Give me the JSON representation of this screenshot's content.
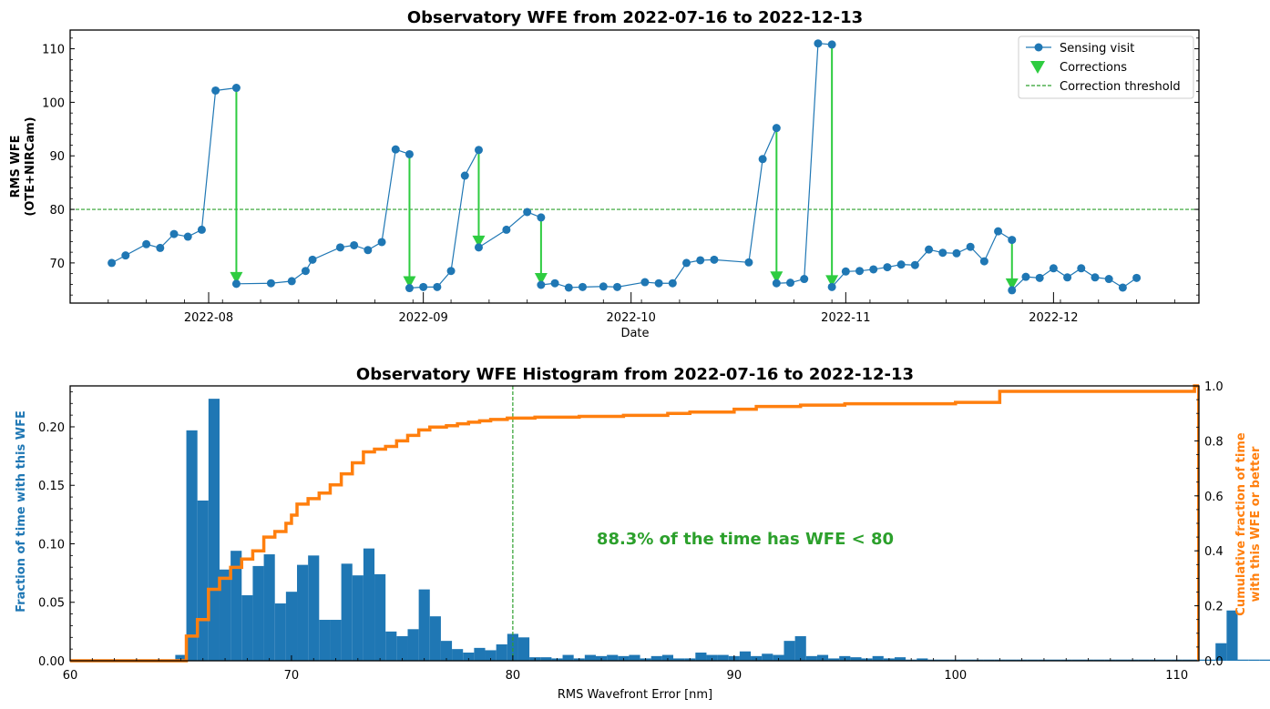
{
  "chart_data": [
    {
      "type": "line",
      "title": "Observatory WFE from 2022-07-16 to 2022-12-13",
      "xlabel": "Date",
      "ylabel_line1": "RMS WFE",
      "ylabel_line2": "(OTE+NIRCam)",
      "x_ticks": [
        "2022-08",
        "2022-09",
        "2022-10",
        "2022-11",
        "2022-12"
      ],
      "y_ticks": [
        70,
        80,
        90,
        100,
        110
      ],
      "xlim": [
        "2022-07-12",
        "2022-12-22"
      ],
      "ylim": [
        62.5,
        113.5
      ],
      "grid": false,
      "legend_position": "top-right",
      "colors": {
        "sensing": "#1f77b4",
        "corrections": "#2ecc40",
        "threshold": "#2ca02c"
      },
      "series": [
        {
          "name": "Sensing visit",
          "points": [
            [
              "2022-07-18",
              70.0
            ],
            [
              "2022-07-20",
              71.4
            ],
            [
              "2022-07-23",
              73.5
            ],
            [
              "2022-07-25",
              72.8
            ],
            [
              "2022-07-27",
              75.4
            ],
            [
              "2022-07-29",
              74.9
            ],
            [
              "2022-07-31",
              76.2
            ],
            [
              "2022-08-02",
              102.2
            ],
            [
              "2022-08-05",
              102.7
            ],
            [
              "2022-08-05",
              66.1
            ],
            [
              "2022-08-10",
              66.2
            ],
            [
              "2022-08-13",
              66.6
            ],
            [
              "2022-08-15",
              68.5
            ],
            [
              "2022-08-16",
              70.6
            ],
            [
              "2022-08-20",
              72.9
            ],
            [
              "2022-08-22",
              73.3
            ],
            [
              "2022-08-24",
              72.4
            ],
            [
              "2022-08-26",
              73.9
            ],
            [
              "2022-08-28",
              91.2
            ],
            [
              "2022-08-30",
              90.3
            ],
            [
              "2022-08-30",
              65.3
            ],
            [
              "2022-09-01",
              65.5
            ],
            [
              "2022-09-03",
              65.5
            ],
            [
              "2022-09-05",
              68.5
            ],
            [
              "2022-09-07",
              86.3
            ],
            [
              "2022-09-09",
              91.1
            ],
            [
              "2022-09-09",
              72.9
            ],
            [
              "2022-09-13",
              76.2
            ],
            [
              "2022-09-16",
              79.5
            ],
            [
              "2022-09-18",
              78.5
            ],
            [
              "2022-09-18",
              65.9
            ],
            [
              "2022-09-20",
              66.2
            ],
            [
              "2022-09-22",
              65.4
            ],
            [
              "2022-09-24",
              65.5
            ],
            [
              "2022-09-27",
              65.6
            ],
            [
              "2022-09-29",
              65.5
            ],
            [
              "2022-10-03",
              66.4
            ],
            [
              "2022-10-05",
              66.2
            ],
            [
              "2022-10-07",
              66.2
            ],
            [
              "2022-10-09",
              70.0
            ],
            [
              "2022-10-11",
              70.5
            ],
            [
              "2022-10-13",
              70.6
            ],
            [
              "2022-10-18",
              70.1
            ],
            [
              "2022-10-20",
              89.4
            ],
            [
              "2022-10-22",
              95.2
            ],
            [
              "2022-10-22",
              66.2
            ],
            [
              "2022-10-24",
              66.3
            ],
            [
              "2022-10-26",
              67.0
            ],
            [
              "2022-10-28",
              111.0
            ],
            [
              "2022-10-30",
              110.8
            ],
            [
              "2022-10-30",
              65.5
            ],
            [
              "2022-11-01",
              68.4
            ],
            [
              "2022-11-03",
              68.5
            ],
            [
              "2022-11-05",
              68.8
            ],
            [
              "2022-11-07",
              69.2
            ],
            [
              "2022-11-09",
              69.7
            ],
            [
              "2022-11-11",
              69.6
            ],
            [
              "2022-11-13",
              72.5
            ],
            [
              "2022-11-15",
              71.9
            ],
            [
              "2022-11-17",
              71.8
            ],
            [
              "2022-11-19",
              73.0
            ],
            [
              "2022-11-21",
              70.3
            ],
            [
              "2022-11-23",
              75.9
            ],
            [
              "2022-11-25",
              74.3
            ],
            [
              "2022-11-25",
              64.9
            ],
            [
              "2022-11-27",
              67.4
            ],
            [
              "2022-11-29",
              67.2
            ],
            [
              "2022-12-01",
              69.0
            ],
            [
              "2022-12-03",
              67.3
            ],
            [
              "2022-12-05",
              69.0
            ],
            [
              "2022-12-07",
              67.3
            ],
            [
              "2022-12-09",
              67.0
            ],
            [
              "2022-12-11",
              65.4
            ],
            [
              "2022-12-13",
              67.2
            ]
          ]
        },
        {
          "name": "Corrections",
          "arrows": [
            [
              "2022-08-05",
              102.7,
              66.1
            ],
            [
              "2022-08-30",
              90.3,
              65.3
            ],
            [
              "2022-09-09",
              91.1,
              72.9
            ],
            [
              "2022-09-18",
              78.5,
              65.9
            ],
            [
              "2022-10-22",
              95.2,
              66.2
            ],
            [
              "2022-10-30",
              110.8,
              65.5
            ],
            [
              "2022-11-25",
              74.3,
              64.9
            ]
          ]
        },
        {
          "name": "Correction threshold",
          "y": 80
        }
      ]
    },
    {
      "type": "bar",
      "title": "Observatory WFE Histogram from 2022-07-16 to 2022-12-13",
      "xlabel": "RMS Wavefront Error [nm]",
      "ylabel_left": "Fraction of time with this WFE",
      "ylabel_right_line1": "Cumulative fraction of time",
      "ylabel_right_line2": "with this WFE or better",
      "x_ticks": [
        60,
        70,
        80,
        90,
        100,
        110
      ],
      "y_ticks_left": [
        "0.00",
        "0.05",
        "0.10",
        "0.15",
        "0.20"
      ],
      "y_ticks_right": [
        "0.0",
        "0.2",
        "0.4",
        "0.6",
        "0.8",
        "1.0"
      ],
      "xlim": [
        60,
        111
      ],
      "ylim_left": [
        0,
        0.235
      ],
      "ylim_right": [
        0,
        1.0
      ],
      "threshold": 80,
      "annotation": "88.3% of the time has WFE < 80",
      "colors": {
        "bars": "#1f77b4",
        "cumulative": "#ff7f0e",
        "threshold": "#2ca02c",
        "annotation": "#2ca02c"
      },
      "bin_start": 64.75,
      "bin_width": 0.5,
      "bar_values": [
        0.005,
        0.197,
        0.137,
        0.224,
        0.078,
        0.094,
        0.056,
        0.081,
        0.091,
        0.049,
        0.059,
        0.082,
        0.09,
        0.035,
        0.035,
        0.083,
        0.073,
        0.096,
        0.074,
        0.025,
        0.021,
        0.027,
        0.061,
        0.038,
        0.017,
        0.01,
        0.007,
        0.011,
        0.009,
        0.014,
        0.023,
        0.02,
        0.003,
        0.003,
        0.002,
        0.005,
        0.002,
        0.005,
        0.004,
        0.005,
        0.004,
        0.005,
        0.002,
        0.004,
        0.005,
        0.002,
        0.002,
        0.007,
        0.005,
        0.005,
        0.004,
        0.008,
        0.004,
        0.006,
        0.005,
        0.017,
        0.021,
        0.004,
        0.005,
        0.002,
        0.004,
        0.003,
        0.002,
        0.004,
        0.002,
        0.003,
        0.001,
        0.002,
        0.001,
        0.001,
        0.001,
        0.001,
        0.001,
        0.001,
        0.001,
        0.001,
        0.001,
        0.001,
        0.001,
        0.001,
        0.001,
        0.001,
        0.001,
        0.001,
        0.001,
        0.001,
        0.001,
        0.001,
        0.001,
        0.001,
        0.001,
        0.001,
        0.001,
        0.001,
        0.015,
        0.043,
        0.001,
        0.001,
        0.001,
        0.001,
        0.001,
        0.001,
        0.001,
        0.001,
        0.001,
        0.001,
        0.001,
        0.001,
        0.001,
        0.001,
        0.001,
        0.001,
        0.001,
        0.001,
        0.001,
        0.001,
        0.001,
        0.001,
        0.001,
        0.031
      ],
      "cumulative": [
        [
          60,
          0
        ],
        [
          65.25,
          0
        ],
        [
          65.25,
          0.09
        ],
        [
          65.75,
          0.09
        ],
        [
          65.75,
          0.15
        ],
        [
          66.25,
          0.15
        ],
        [
          66.25,
          0.26
        ],
        [
          66.75,
          0.26
        ],
        [
          66.75,
          0.3
        ],
        [
          67.25,
          0.3
        ],
        [
          67.25,
          0.34
        ],
        [
          67.75,
          0.34
        ],
        [
          67.75,
          0.37
        ],
        [
          68.25,
          0.37
        ],
        [
          68.25,
          0.4
        ],
        [
          68.75,
          0.4
        ],
        [
          68.75,
          0.45
        ],
        [
          69.25,
          0.45
        ],
        [
          69.25,
          0.47
        ],
        [
          69.75,
          0.47
        ],
        [
          69.75,
          0.5
        ],
        [
          70.0,
          0.5
        ],
        [
          70.0,
          0.53
        ],
        [
          70.25,
          0.53
        ],
        [
          70.25,
          0.57
        ],
        [
          70.75,
          0.57
        ],
        [
          70.75,
          0.59
        ],
        [
          71.25,
          0.59
        ],
        [
          71.25,
          0.61
        ],
        [
          71.75,
          0.61
        ],
        [
          71.75,
          0.64
        ],
        [
          72.25,
          0.64
        ],
        [
          72.25,
          0.68
        ],
        [
          72.75,
          0.68
        ],
        [
          72.75,
          0.72
        ],
        [
          73.25,
          0.72
        ],
        [
          73.25,
          0.76
        ],
        [
          73.75,
          0.76
        ],
        [
          73.75,
          0.77
        ],
        [
          74.25,
          0.77
        ],
        [
          74.25,
          0.78
        ],
        [
          74.75,
          0.78
        ],
        [
          74.75,
          0.8
        ],
        [
          75.25,
          0.8
        ],
        [
          75.25,
          0.82
        ],
        [
          75.75,
          0.82
        ],
        [
          75.75,
          0.84
        ],
        [
          76.25,
          0.84
        ],
        [
          76.25,
          0.85
        ],
        [
          77.0,
          0.85
        ],
        [
          77.0,
          0.855
        ],
        [
          77.5,
          0.855
        ],
        [
          77.5,
          0.862
        ],
        [
          78.0,
          0.862
        ],
        [
          78.0,
          0.868
        ],
        [
          78.5,
          0.868
        ],
        [
          78.5,
          0.873
        ],
        [
          79.0,
          0.873
        ],
        [
          79.0,
          0.878
        ],
        [
          79.75,
          0.878
        ],
        [
          79.75,
          0.883
        ],
        [
          81,
          0.883
        ],
        [
          81,
          0.886
        ],
        [
          83,
          0.886
        ],
        [
          83,
          0.889
        ],
        [
          85,
          0.889
        ],
        [
          85,
          0.893
        ],
        [
          87,
          0.893
        ],
        [
          87,
          0.9
        ],
        [
          88,
          0.9
        ],
        [
          88,
          0.905
        ],
        [
          90,
          0.905
        ],
        [
          90,
          0.915
        ],
        [
          91,
          0.915
        ],
        [
          91,
          0.925
        ],
        [
          93,
          0.925
        ],
        [
          93,
          0.93
        ],
        [
          95,
          0.93
        ],
        [
          95,
          0.935
        ],
        [
          100,
          0.935
        ],
        [
          100,
          0.94
        ],
        [
          102,
          0.94
        ],
        [
          102,
          0.98
        ],
        [
          110.8,
          0.98
        ],
        [
          110.8,
          1.0
        ],
        [
          111,
          1.0
        ]
      ]
    }
  ]
}
